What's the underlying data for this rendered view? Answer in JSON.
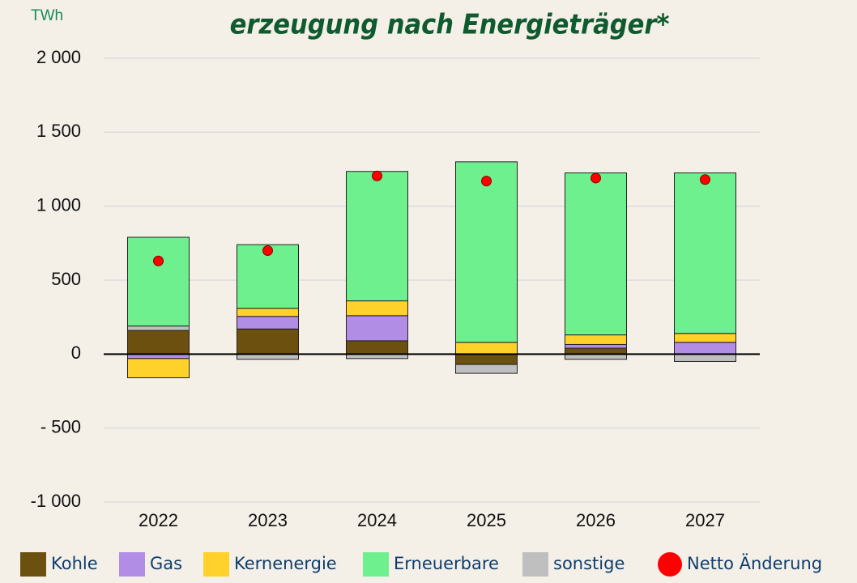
{
  "chart_data": {
    "type": "stacked_bar",
    "title": "erzeugung nach Energieträger*",
    "y_label": "TWh",
    "categories": [
      "2022",
      "2023",
      "2024",
      "2025",
      "2026",
      "2027"
    ],
    "series": [
      {
        "name": "Kohle",
        "color": "#6b5010",
        "kind": "bar",
        "values": [
          160,
          170,
          90,
          -70,
          40,
          0
        ]
      },
      {
        "name": "Gas",
        "color": "#b28de6",
        "kind": "bar",
        "values": [
          -30,
          85,
          170,
          0,
          25,
          80
        ]
      },
      {
        "name": "Kernenergie",
        "color": "#ffd12a",
        "kind": "bar",
        "values": [
          -130,
          55,
          100,
          80,
          65,
          60
        ]
      },
      {
        "name": "Erneuerbare",
        "color": "#6ef08e",
        "kind": "bar",
        "values": [
          600,
          430,
          875,
          1220,
          1095,
          1085
        ]
      },
      {
        "name": "sonstige",
        "color": "#bfbfbf",
        "kind": "bar",
        "values": [
          30,
          -35,
          -30,
          -60,
          -35,
          -50
        ]
      },
      {
        "name": "Netto Änderung",
        "color": "#ff0000",
        "kind": "point",
        "values": [
          630,
          700,
          1205,
          1170,
          1190,
          1180
        ]
      }
    ],
    "ylim": [
      -1000,
      2000
    ],
    "yticks": [
      {
        "value": 2000,
        "label": "2 000"
      },
      {
        "value": 1500,
        "label": "1 500"
      },
      {
        "value": 1000,
        "label": "1 000"
      },
      500,
      0,
      {
        "value": -500,
        "label": "- 500"
      },
      {
        "value": -1000,
        "label": "-1 000"
      }
    ],
    "grid": true
  }
}
